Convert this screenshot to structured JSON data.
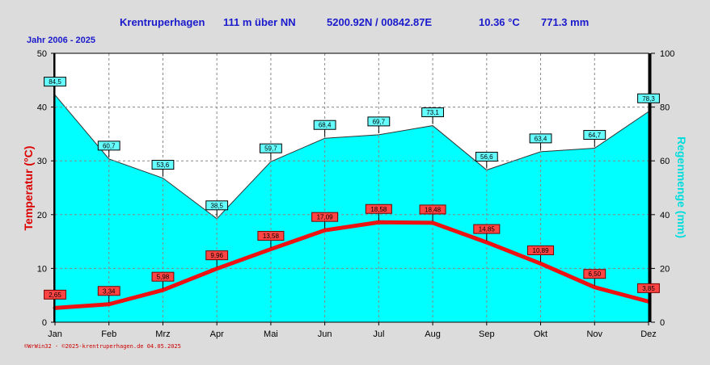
{
  "header": {
    "station": "Krentruperhagen",
    "altitude": "111 m über NN",
    "coords": "5200.92N / 00842.87E",
    "mean_temp": "10.36 °C",
    "precip_total": "771.3 mm"
  },
  "period": "Jahr  2006 - 2025",
  "footer": "©WrWin32 - ©2025-krentruperhagen.de  04.05.2025",
  "colors": {
    "temperature": "#ee1111",
    "precipitation_fill": "#00ffff",
    "header_text": "#1a1acc",
    "background": "#dcdcdc"
  },
  "chart_data": {
    "type": "area",
    "categories": [
      "Jan",
      "Feb",
      "Mrz",
      "Apr",
      "Mai",
      "Jun",
      "Jul",
      "Aug",
      "Sep",
      "Okt",
      "Nov",
      "Dez"
    ],
    "series": [
      {
        "name": "",
        "axis": "left",
        "type": "line",
        "values": [
          2.65,
          3.34,
          5.98,
          9.96,
          13.58,
          17.09,
          18.58,
          18.48,
          14.85,
          10.89,
          6.5,
          3.85
        ],
        "labels": [
          "2,65",
          "3,34",
          "5,98",
          "9,96",
          "13,58",
          "17,09",
          "18,58",
          "18,48",
          "14,85",
          "10,89",
          "6,50",
          "3,85"
        ]
      },
      {
        "name": "",
        "axis": "right",
        "type": "area",
        "values": [
          84.5,
          60.7,
          53.6,
          38.5,
          59.7,
          68.4,
          69.7,
          73.1,
          56.6,
          63.4,
          64.7,
          78.3
        ],
        "labels": [
          "84,5",
          "60,7",
          "53,6",
          "38,5",
          "59,7",
          "68,4",
          "69,7",
          "73,1",
          "56,6",
          "63,4",
          "64,7",
          "78,3"
        ]
      }
    ],
    "left_axis": {
      "label": "Temperatur  (°C)",
      "min": 0,
      "max": 50,
      "ticks": [
        "0",
        "10",
        "20",
        "30",
        "40",
        "50"
      ]
    },
    "right_axis": {
      "label": "Regenmenge  (mm)",
      "min": 0,
      "max": 100,
      "ticks": [
        "0",
        "20",
        "40",
        "60",
        "80",
        "100"
      ]
    },
    "grid": true
  }
}
